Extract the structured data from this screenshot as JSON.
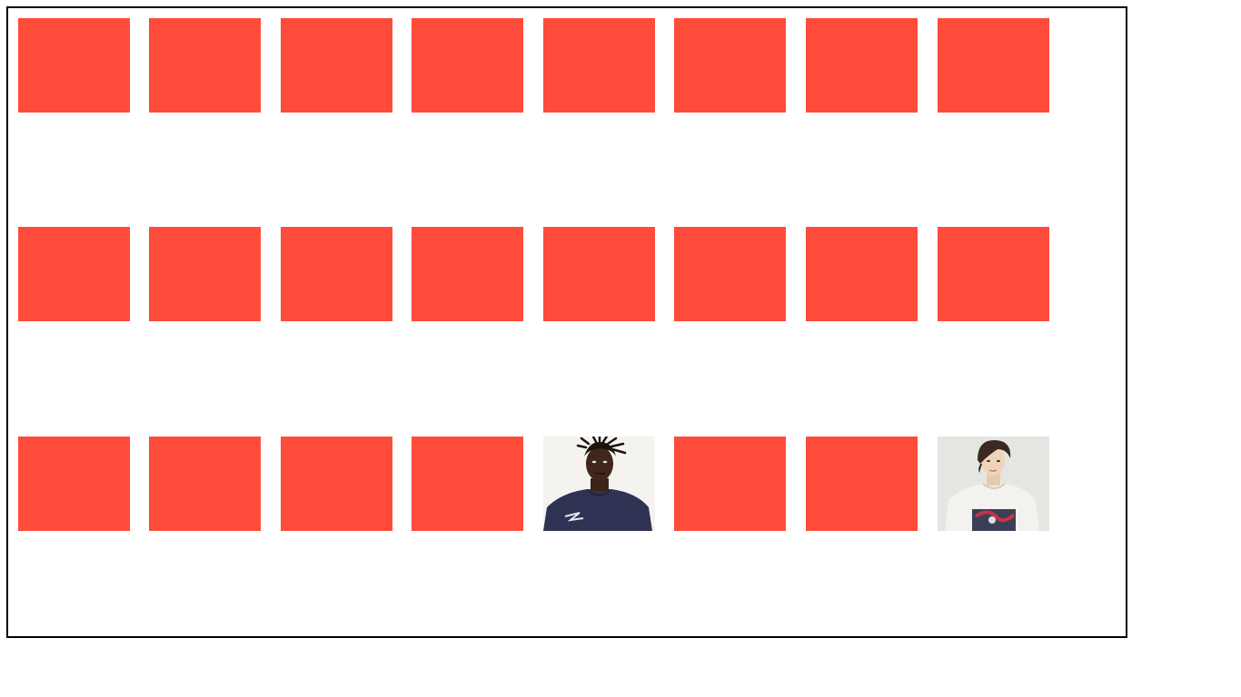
{
  "game": {
    "card_back_color": "#ff4b3a",
    "rows": [
      {
        "cards": [
          {
            "state": "face-down"
          },
          {
            "state": "face-down"
          },
          {
            "state": "face-down"
          },
          {
            "state": "face-down"
          },
          {
            "state": "face-down"
          },
          {
            "state": "face-down"
          },
          {
            "state": "face-down"
          },
          {
            "state": "face-down"
          }
        ]
      },
      {
        "cards": [
          {
            "state": "face-down"
          },
          {
            "state": "face-down"
          },
          {
            "state": "face-down"
          },
          {
            "state": "face-down"
          },
          {
            "state": "face-down"
          },
          {
            "state": "face-down"
          },
          {
            "state": "face-down"
          },
          {
            "state": "face-down"
          }
        ]
      },
      {
        "cards": [
          {
            "state": "face-down"
          },
          {
            "state": "face-down"
          },
          {
            "state": "face-down"
          },
          {
            "state": "face-down"
          },
          {
            "state": "face-up",
            "image": "portrait-man-dreadlocks"
          },
          {
            "state": "face-down"
          },
          {
            "state": "face-down"
          },
          {
            "state": "face-up",
            "image": "portrait-woman-short-hair"
          }
        ]
      }
    ]
  }
}
